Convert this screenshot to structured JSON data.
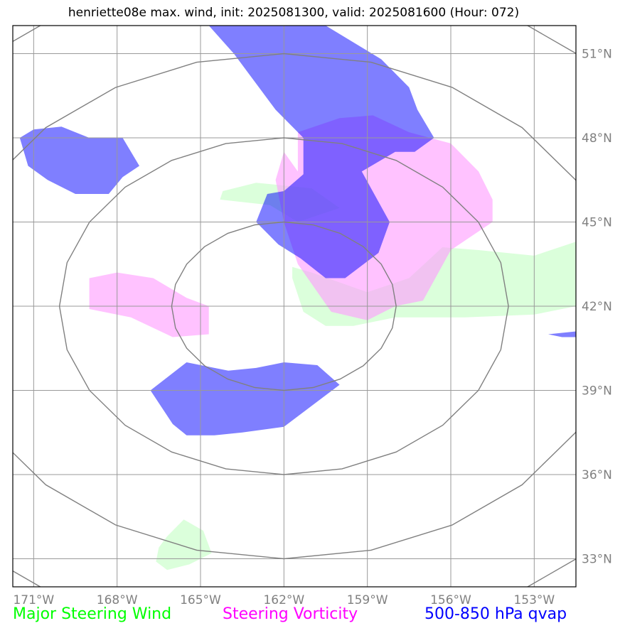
{
  "title": "henriette08e max. wind, init: 2025081300, valid: 2025081600 (Hour: 072)",
  "map": {
    "lon_range": [
      -171.75,
      -151.5
    ],
    "lat_range": [
      32,
      52
    ],
    "lon_ticks": [
      -171,
      -168,
      -165,
      -162,
      -159,
      -156,
      -153
    ],
    "lat_ticks": [
      33,
      36,
      39,
      42,
      45,
      48,
      51
    ],
    "lon_labels": [
      "171°W",
      "168°W",
      "165°W",
      "162°W",
      "159°W",
      "156°W",
      "153°W"
    ],
    "lat_labels": [
      "33°N",
      "36°N",
      "39°N",
      "42°N",
      "45°N",
      "48°N",
      "51°N"
    ],
    "range_rings_center": [
      -162,
      42
    ],
    "range_rings_radii_deg": [
      3,
      6,
      9,
      12
    ]
  },
  "legend": [
    {
      "label": "Major Steering Wind",
      "color": "#00ff00"
    },
    {
      "label": "Steering Vorticity",
      "color": "#ff00ff"
    },
    {
      "label": "500-850 hPa qvap",
      "color": "#0000ff"
    }
  ],
  "layers": {
    "wind": {
      "color": "#ccffcc",
      "polygons": [
        [
          [
            -164.2,
            46.1
          ],
          [
            -163.0,
            46.4
          ],
          [
            -161.0,
            46.2
          ],
          [
            -160.0,
            45.5
          ],
          [
            -161.5,
            45.0
          ],
          [
            -162.5,
            45.6
          ],
          [
            -164.3,
            45.8
          ]
        ],
        [
          [
            -161.7,
            43.4
          ],
          [
            -161.0,
            43.2
          ],
          [
            -159.0,
            42.5
          ],
          [
            -157.5,
            43.0
          ],
          [
            -156.3,
            44.1
          ],
          [
            -155.0,
            44.0
          ],
          [
            -153.0,
            43.8
          ],
          [
            -151.5,
            44.3
          ],
          [
            -151.5,
            42.0
          ],
          [
            -153.0,
            41.7
          ],
          [
            -155.5,
            41.6
          ],
          [
            -158.0,
            41.6
          ],
          [
            -159.5,
            41.3
          ],
          [
            -160.5,
            41.3
          ],
          [
            -161.3,
            41.8
          ],
          [
            -161.7,
            43.0
          ]
        ],
        [
          [
            -166.2,
            33.8
          ],
          [
            -165.6,
            34.4
          ],
          [
            -164.9,
            34.0
          ],
          [
            -164.6,
            33.2
          ],
          [
            -165.4,
            32.8
          ],
          [
            -166.2,
            32.6
          ],
          [
            -166.6,
            32.9
          ],
          [
            -166.5,
            33.4
          ]
        ]
      ]
    },
    "vorticity": {
      "color": "#ff99ff",
      "polygons": [
        [
          [
            -161.5,
            46.8
          ],
          [
            -161.5,
            48.2
          ],
          [
            -160.0,
            48.7
          ],
          [
            -158.8,
            48.8
          ],
          [
            -157.5,
            48.2
          ],
          [
            -156.0,
            47.8
          ],
          [
            -155.0,
            46.8
          ],
          [
            -154.5,
            45.8
          ],
          [
            -154.5,
            45.0
          ],
          [
            -156.0,
            44.0
          ],
          [
            -157.0,
            42.2
          ],
          [
            -158.0,
            42.0
          ],
          [
            -159.0,
            41.5
          ],
          [
            -160.3,
            41.8
          ],
          [
            -161.5,
            43.5
          ],
          [
            -162.0,
            45.0
          ],
          [
            -162.3,
            46.5
          ],
          [
            -162.0,
            47.5
          ]
        ],
        [
          [
            -169.0,
            43.0
          ],
          [
            -168.0,
            43.2
          ],
          [
            -166.7,
            43.0
          ],
          [
            -165.5,
            42.3
          ],
          [
            -164.7,
            42.0
          ],
          [
            -164.7,
            41.0
          ],
          [
            -166.0,
            40.9
          ],
          [
            -167.5,
            41.6
          ],
          [
            -169.0,
            41.9
          ]
        ]
      ]
    },
    "qvap": {
      "color": "#0000ff",
      "polygons": [
        [
          [
            -164.7,
            52.0
          ],
          [
            -160.5,
            52.0
          ],
          [
            -158.5,
            50.8
          ],
          [
            -157.5,
            49.8
          ],
          [
            -157.2,
            49.0
          ],
          [
            -156.6,
            48.0
          ],
          [
            -157.3,
            47.5
          ],
          [
            -158.0,
            47.5
          ],
          [
            -159.2,
            46.8
          ],
          [
            -158.2,
            45.0
          ],
          [
            -158.6,
            43.9
          ],
          [
            -159.8,
            43.0
          ],
          [
            -160.5,
            43.0
          ],
          [
            -161.4,
            43.7
          ],
          [
            -162.2,
            44.2
          ],
          [
            -163.0,
            45.0
          ],
          [
            -162.6,
            46.0
          ],
          [
            -162.0,
            46.1
          ],
          [
            -161.3,
            46.7
          ],
          [
            -161.3,
            48.0
          ],
          [
            -162.3,
            49.0
          ],
          [
            -163.8,
            51.0
          ]
        ],
        [
          [
            -171.5,
            48.0
          ],
          [
            -171.0,
            48.3
          ],
          [
            -170.0,
            48.4
          ],
          [
            -169.0,
            48.0
          ],
          [
            -167.8,
            48.0
          ],
          [
            -167.2,
            47.0
          ],
          [
            -167.8,
            46.6
          ],
          [
            -168.3,
            46.0
          ],
          [
            -169.5,
            46.0
          ],
          [
            -170.5,
            46.5
          ],
          [
            -171.2,
            47.0
          ]
        ],
        [
          [
            -166.8,
            39.0
          ],
          [
            -165.5,
            40.0
          ],
          [
            -164.0,
            39.7
          ],
          [
            -163.0,
            39.8
          ],
          [
            -162.0,
            40.0
          ],
          [
            -160.8,
            39.9
          ],
          [
            -160.0,
            39.2
          ],
          [
            -160.8,
            38.6
          ],
          [
            -162.0,
            37.7
          ],
          [
            -163.5,
            37.5
          ],
          [
            -164.5,
            37.4
          ],
          [
            -165.5,
            37.4
          ],
          [
            -166.0,
            37.8
          ]
        ],
        [
          [
            -152.5,
            41.0
          ],
          [
            -151.5,
            41.1
          ],
          [
            -151.5,
            40.9
          ],
          [
            -152.0,
            40.9
          ]
        ]
      ]
    }
  }
}
